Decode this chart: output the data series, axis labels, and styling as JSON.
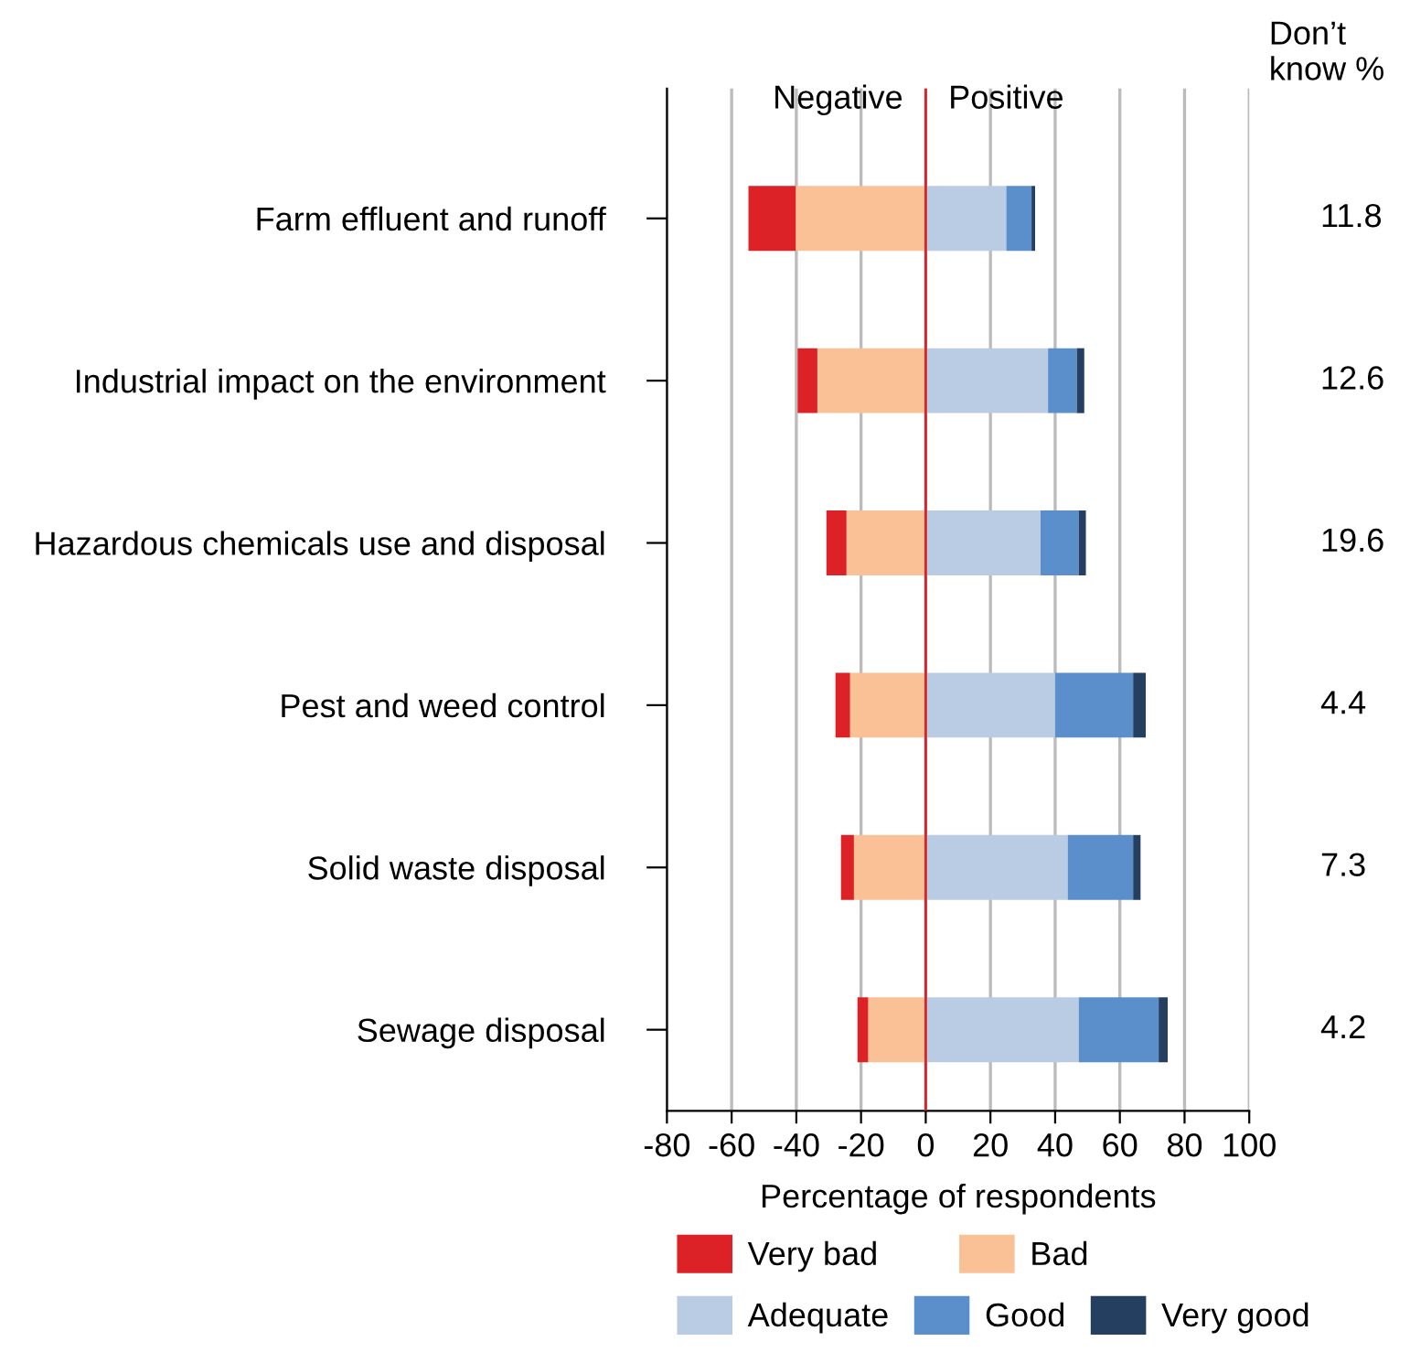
{
  "chart_data": {
    "type": "bar",
    "orientation": "horizontal",
    "stacked": true,
    "categories": [
      "Farm effluent and runoff",
      "Industrial impact on the environment",
      "Hazardous chemicals use and disposal",
      "Pest and weed control",
      "Solid waste disposal",
      "Sewage disposal"
    ],
    "series": [
      {
        "name": "Bad",
        "color": "#f9c195",
        "values": [
          -40.2,
          -33.5,
          -24.5,
          -23.4,
          -22.2,
          -17.8
        ]
      },
      {
        "name": "Very bad",
        "color": "#dc2127",
        "values": [
          -14.6,
          -6.1,
          -6.2,
          -4.5,
          -4.0,
          -3.3
        ]
      },
      {
        "name": "Adequate",
        "color": "#b9cce4",
        "values": [
          24.9,
          37.8,
          35.5,
          40.0,
          43.9,
          47.3
        ]
      },
      {
        "name": "Good",
        "color": "#5a8fcb",
        "values": [
          7.8,
          8.9,
          11.8,
          24.1,
          20.2,
          24.7
        ]
      },
      {
        "name": "Very good",
        "color": "#243f60",
        "values": [
          1.1,
          2.3,
          2.2,
          3.9,
          2.3,
          2.8
        ]
      }
    ],
    "xlabel": "Percentage of respondents",
    "xlim": [
      -80,
      100
    ],
    "xticks": [
      -80,
      -60,
      -40,
      -20,
      0,
      20,
      40,
      60,
      80,
      100
    ],
    "ref_lines": [
      {
        "axis": "x",
        "value": 0,
        "color": "#dc2127"
      }
    ],
    "grid": "x",
    "legend": "bottom",
    "annotations": [
      "Negative",
      "Positive",
      "Don’t know %",
      "11.8",
      "12.6",
      "19.6",
      "4.4",
      "7.3",
      "4.2"
    ]
  }
}
